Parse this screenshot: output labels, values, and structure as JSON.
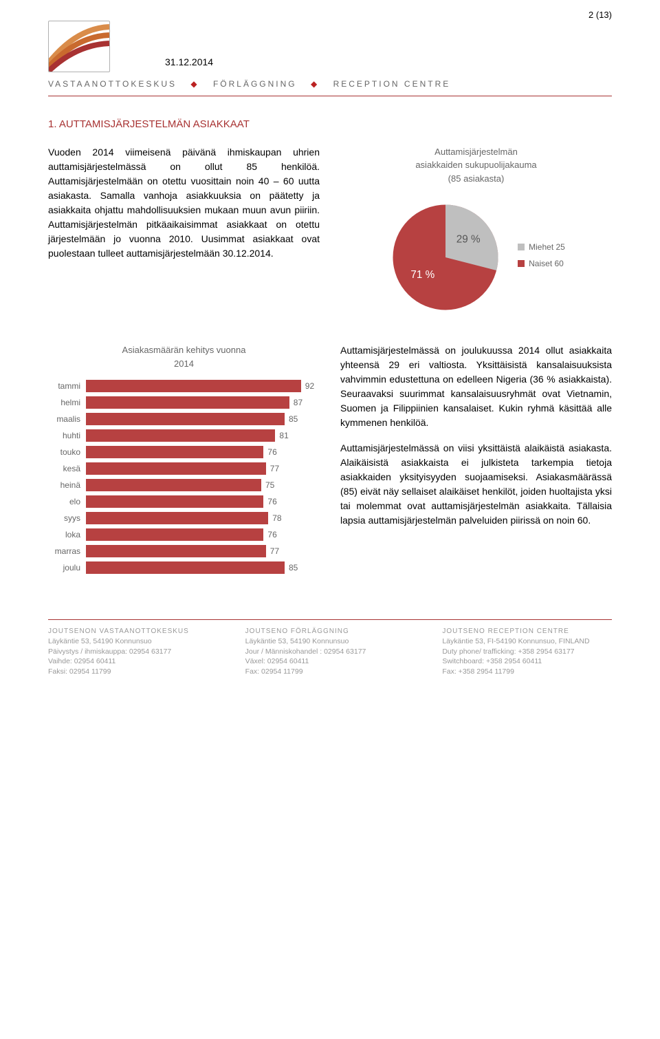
{
  "page_number": "2 (13)",
  "date": "31.12.2014",
  "org": {
    "a": "VASTAANOTTOKESKUS",
    "b": "FÖRLÄGGNING",
    "c": "RECEPTION CENTRE"
  },
  "section1": {
    "title": "1. AUTTAMISJÄRJESTELMÄN ASIAKKAAT",
    "para": "Vuoden 2014 viimeisenä päivänä ihmiskaupan uhrien auttamisjärjestelmässä on ollut 85 henkilöä. Auttamisjärjestelmään on otettu vuosittain noin 40 – 60 uutta asiakasta. Samalla vanhoja asiakkuuksia on päätetty ja asiakkaita ohjattu mahdollisuuksien mukaan muun avun piiriin. Auttamisjärjestelmän pitkäaikaisimmat asiakkaat on otettu järjestelmään jo vuonna 2010. Uusimmat asiakkaat ovat puolestaan tulleet auttamisjärjestelmään 30.12.2014."
  },
  "pie": {
    "title_l1": "Auttamisjärjestelmän",
    "title_l2": "asiakkaiden sukupuolijakauma",
    "title_l3": "(85 asiakasta)",
    "slices": [
      {
        "label": "71 %",
        "pct": 71,
        "color": "#b74141"
      },
      {
        "label": "29 %",
        "pct": 29,
        "color": "#bfbfbf"
      }
    ],
    "legend": [
      {
        "color": "#bfbfbf",
        "text": "Miehet  25"
      },
      {
        "color": "#b74141",
        "text": "Naiset  60"
      }
    ]
  },
  "bar": {
    "title_l1": "Asiakasmäärän kehitys vuonna",
    "title_l2": "2014",
    "max": 100,
    "bar_color": "#b74141",
    "rows": [
      {
        "label": "tammi",
        "value": 92
      },
      {
        "label": "helmi",
        "value": 87
      },
      {
        "label": "maalis",
        "value": 85
      },
      {
        "label": "huhti",
        "value": 81
      },
      {
        "label": "touko",
        "value": 76
      },
      {
        "label": "kesä",
        "value": 77
      },
      {
        "label": "heinä",
        "value": 75
      },
      {
        "label": "elo",
        "value": 76
      },
      {
        "label": "syys",
        "value": 78
      },
      {
        "label": "loka",
        "value": 76
      },
      {
        "label": "marras",
        "value": 77
      },
      {
        "label": "joulu",
        "value": 85
      }
    ]
  },
  "section2": {
    "para1": "Auttamisjärjestelmässä on joulukuussa 2014 ollut asiakkaita yhteensä 29 eri valtiosta. Yksittäisistä kansalaisuuksista vahvimmin edustettuna on edelleen Nigeria (36 % asiakkaista). Seuraavaksi suurimmat kansalaisuusryhmät ovat Vietnamin, Suomen ja Filippiinien kansalaiset. Kukin ryhmä käsittää alle kymmenen henkilöä.",
    "para2": "Auttamisjärjestelmässä on viisi yksittäistä alaikäistä asiakasta. Alaikäisistä asiakkaista ei julkisteta tarkempia tietoja asiakkaiden yksityisyyden suojaamiseksi. Asiakasmäärässä (85) eivät näy sellaiset alaikäiset henkilöt, joiden huoltajista yksi tai molemmat ovat auttamisjärjestelmän asiakkaita. Tällaisia lapsia auttamisjärjestelmän palveluiden piirissä on noin 60."
  },
  "footer": {
    "cols": [
      {
        "name": "JOUTSENON VASTAANOTTOKESKUS",
        "lines": [
          "Läykäntie 53, 54190 Konnunsuo",
          "Päivystys / ihmiskauppa: 02954 63177",
          "Vaihde: 02954 60411",
          "Faksi: 02954 11799"
        ]
      },
      {
        "name": "JOUTSENO FÖRLÄGGNING",
        "lines": [
          "Läykäntie 53, 54190 Konnunsuo",
          "Jour / Människohandel : 02954 63177",
          "Växel: 02954 60411",
          "Fax: 02954 11799"
        ]
      },
      {
        "name": "JOUTSENO RECEPTION CENTRE",
        "lines": [
          "Läykäntie 53, FI-54190 Konnunsuo, FINLAND",
          "Duty phone/ trafficking: +358 2954 63177",
          "Switchboard: +358 2954 60411",
          "Fax: +358 2954 11799"
        ]
      }
    ]
  }
}
